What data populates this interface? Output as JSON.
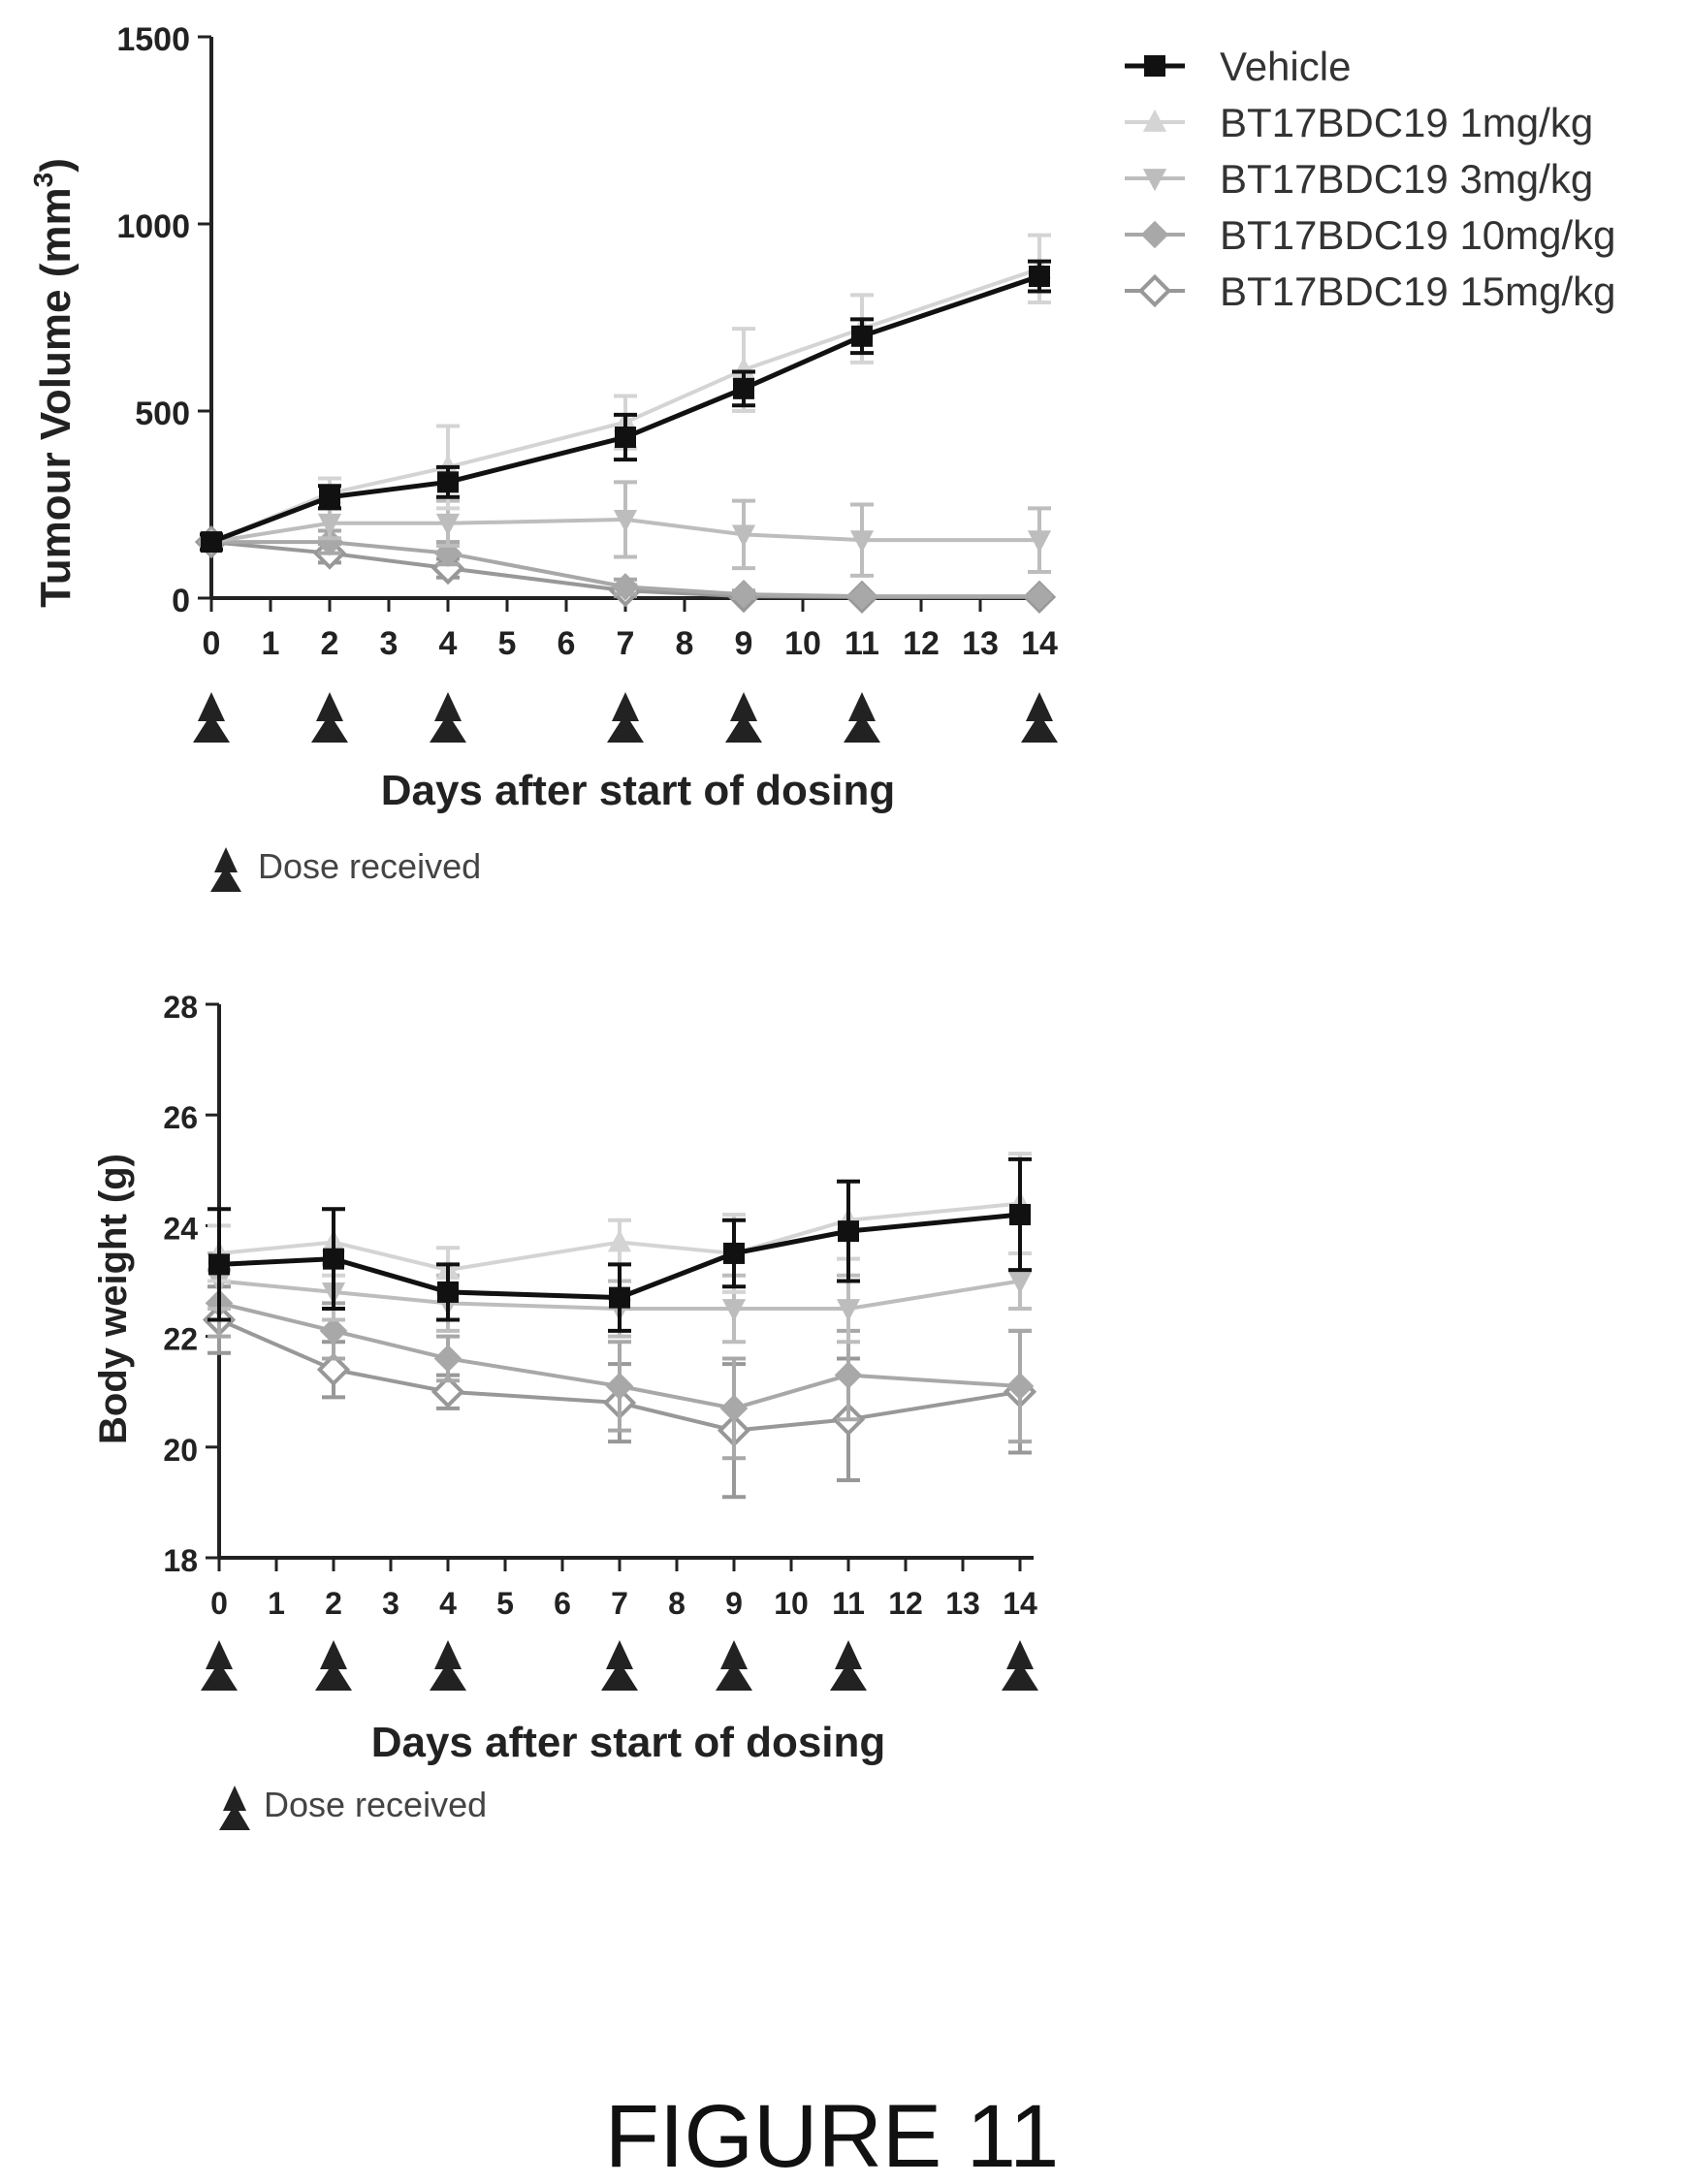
{
  "figure_caption": "FIGURE 11",
  "series_styles": [
    {
      "name": "Vehicle",
      "color": "#111111",
      "marker": "square",
      "width": 5
    },
    {
      "name": "BT17BDC19  1mg/kg",
      "color": "#d4d4d4",
      "marker": "triangle-up",
      "width": 4
    },
    {
      "name": "BT17BDC19 3mg/kg",
      "color": "#bdbdbd",
      "marker": "triangle-down",
      "width": 4
    },
    {
      "name": "BT17BDC19 10mg/kg",
      "color": "#a8a8a8",
      "marker": "diamond",
      "width": 4
    },
    {
      "name": "BT17BDC19 15mg/kg",
      "color": "#989898",
      "marker": "diamond-open",
      "width": 4
    }
  ],
  "chart_data": [
    {
      "type": "line",
      "title": "",
      "ylabel": "Tumour Volume (mm3)",
      "ylabel_main": "Tumour Volume (mm",
      "ylabel_sup": "3",
      "ylabel_end": ")",
      "xlabel": "Days after start of dosing",
      "xlim": [
        0,
        14
      ],
      "ylim": [
        0,
        1500
      ],
      "x_ticks": [
        "0",
        "1",
        "2",
        "3",
        "4",
        "5",
        "6",
        "7",
        "8",
        "9",
        "10",
        "11",
        "12",
        "13",
        "14"
      ],
      "y_ticks": [
        "0",
        "500",
        "1000",
        "1500"
      ],
      "dose_days": [
        0,
        2,
        4,
        7,
        9,
        11,
        14
      ],
      "dose_note": "Dose received",
      "legend": {
        "position": "top-right"
      },
      "x": [
        0,
        2,
        4,
        7,
        9,
        11,
        14
      ],
      "series": [
        {
          "name": "Vehicle",
          "values": [
            150,
            270,
            310,
            430,
            560,
            700,
            860
          ],
          "errors": [
            20,
            30,
            40,
            60,
            45,
            45,
            40
          ]
        },
        {
          "name": "BT17BDC19  1mg/kg",
          "values": [
            150,
            280,
            350,
            470,
            610,
            720,
            880
          ],
          "errors": [
            20,
            40,
            110,
            70,
            110,
            90,
            90
          ]
        },
        {
          "name": "BT17BDC19 3mg/kg",
          "values": [
            150,
            200,
            200,
            210,
            170,
            155,
            155
          ],
          "errors": [
            20,
            40,
            60,
            100,
            90,
            95,
            85
          ]
        },
        {
          "name": "BT17BDC19 10mg/kg",
          "values": [
            150,
            150,
            120,
            30,
            10,
            5,
            5
          ],
          "errors": [
            15,
            30,
            30,
            20,
            10,
            5,
            5
          ]
        },
        {
          "name": "BT17BDC19 15mg/kg",
          "values": [
            150,
            120,
            80,
            20,
            5,
            3,
            3
          ],
          "errors": [
            15,
            25,
            25,
            15,
            5,
            3,
            3
          ]
        }
      ]
    },
    {
      "type": "line",
      "title": "",
      "ylabel": "Body weight (g)",
      "xlabel": "Days after start of dosing",
      "xlim": [
        0,
        14
      ],
      "ylim": [
        18,
        28
      ],
      "x_ticks": [
        "0",
        "1",
        "2",
        "3",
        "4",
        "5",
        "6",
        "7",
        "8",
        "9",
        "10",
        "11",
        "12",
        "13",
        "14"
      ],
      "y_ticks": [
        "18",
        "20",
        "22",
        "24",
        "26",
        "28"
      ],
      "dose_days": [
        0,
        2,
        4,
        7,
        9,
        11,
        14
      ],
      "dose_note": "Dose received",
      "x": [
        0,
        2,
        4,
        7,
        9,
        11,
        14
      ],
      "series": [
        {
          "name": "Vehicle",
          "values": [
            23.3,
            23.4,
            22.8,
            22.7,
            23.5,
            23.9,
            24.2
          ],
          "errors": [
            1.0,
            0.9,
            0.5,
            0.6,
            0.6,
            0.9,
            1.0
          ]
        },
        {
          "name": "BT17BDC19  1mg/kg",
          "values": [
            23.5,
            23.7,
            23.2,
            23.7,
            23.5,
            24.1,
            24.4
          ],
          "errors": [
            0.5,
            0.6,
            0.4,
            0.4,
            0.7,
            0.7,
            0.9
          ]
        },
        {
          "name": "BT17BDC19 3mg/kg",
          "values": [
            23.0,
            22.8,
            22.6,
            22.5,
            22.5,
            22.5,
            23.0
          ],
          "errors": [
            0.5,
            0.5,
            0.5,
            0.5,
            0.6,
            0.6,
            0.5
          ]
        },
        {
          "name": "BT17BDC19 10mg/kg",
          "values": [
            22.6,
            22.1,
            21.6,
            21.1,
            20.7,
            21.3,
            21.1
          ],
          "errors": [
            0.6,
            0.5,
            0.4,
            0.8,
            0.9,
            0.8,
            1.0
          ]
        },
        {
          "name": "BT17BDC19 15mg/kg",
          "values": [
            22.3,
            21.4,
            21.0,
            20.8,
            20.3,
            20.5,
            21.0
          ],
          "errors": [
            0.6,
            0.5,
            0.3,
            0.7,
            1.2,
            1.1,
            1.1
          ]
        }
      ]
    }
  ]
}
